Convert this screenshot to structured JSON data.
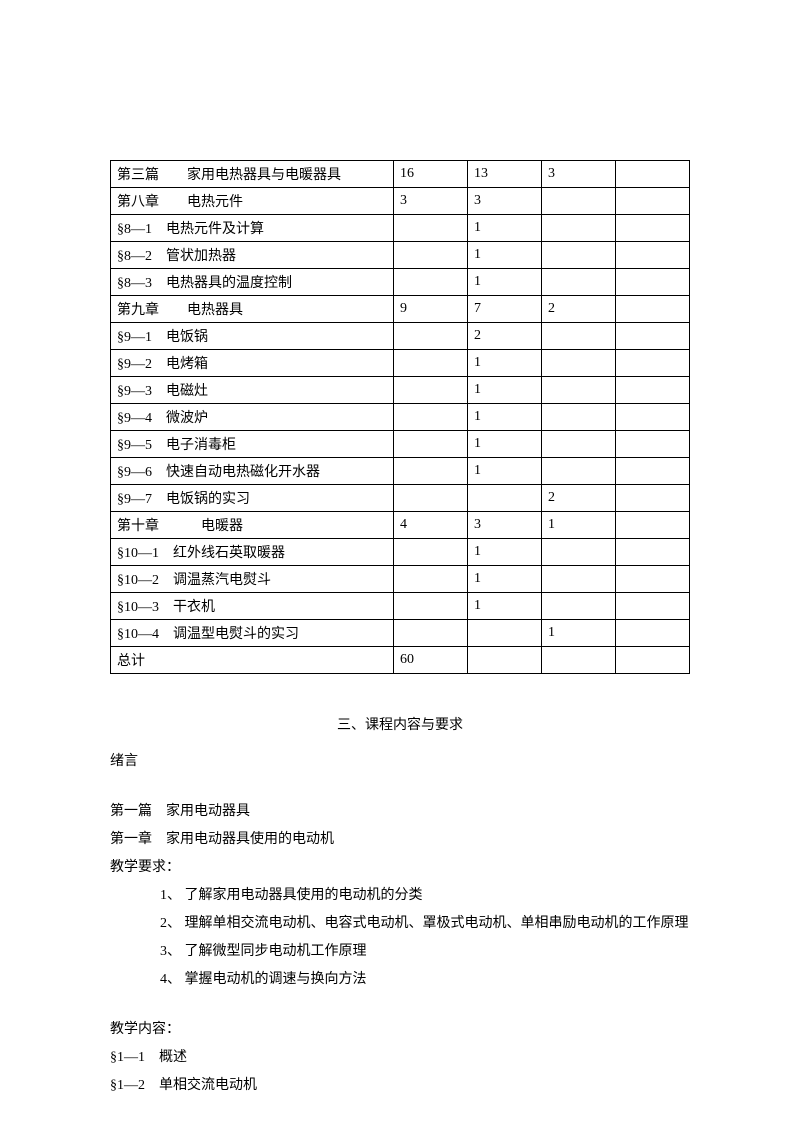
{
  "table": {
    "rows": [
      {
        "label": "第三篇　　家用电热器具与电暖器具",
        "c2": "16",
        "c3": "13",
        "c4": "3",
        "c5": ""
      },
      {
        "label": "第八章　　电热元件",
        "c2": "3",
        "c3": "3",
        "c4": "",
        "c5": ""
      },
      {
        "label": "§8—1　电热元件及计算",
        "c2": "",
        "c3": "1",
        "c4": "",
        "c5": ""
      },
      {
        "label": "§8—2　管状加热器",
        "c2": "",
        "c3": "1",
        "c4": "",
        "c5": ""
      },
      {
        "label": "§8—3　电热器具的温度控制",
        "c2": "",
        "c3": "1",
        "c4": "",
        "c5": ""
      },
      {
        "label": "第九章　　电热器具",
        "c2": "9",
        "c3": "7",
        "c4": "2",
        "c5": ""
      },
      {
        "label": "§9—1　电饭锅",
        "c2": "",
        "c3": "2",
        "c4": "",
        "c5": ""
      },
      {
        "label": "§9—2　电烤箱",
        "c2": "",
        "c3": "1",
        "c4": "",
        "c5": ""
      },
      {
        "label": "§9—3　电磁灶",
        "c2": "",
        "c3": "1",
        "c4": "",
        "c5": ""
      },
      {
        "label": "§9—4　微波炉",
        "c2": "",
        "c3": "1",
        "c4": "",
        "c5": ""
      },
      {
        "label": "§9—5　电子消毒柜",
        "c2": "",
        "c3": "1",
        "c4": "",
        "c5": ""
      },
      {
        "label": "§9—6　快速自动电热磁化开水器",
        "c2": "",
        "c3": "1",
        "c4": "",
        "c5": ""
      },
      {
        "label": "§9—7　电饭锅的实习",
        "c2": "",
        "c3": "",
        "c4": "2",
        "c5": ""
      },
      {
        "label": "第十章　　　电暖器",
        "c2": "4",
        "c3": "3",
        "c4": "1",
        "c5": ""
      },
      {
        "label": "§10—1　红外线石英取暖器",
        "c2": "",
        "c3": "1",
        "c4": "",
        "c5": ""
      },
      {
        "label": "§10—2　调温蒸汽电熨斗",
        "c2": "",
        "c3": "1",
        "c4": "",
        "c5": ""
      },
      {
        "label": "§10—3　干衣机",
        "c2": "",
        "c3": "1",
        "c4": "",
        "c5": ""
      },
      {
        "label": "§10—4　调温型电熨斗的实习",
        "c2": "",
        "c3": "",
        "c4": "1",
        "c5": ""
      },
      {
        "label": "总计",
        "c2": "60",
        "c3": "",
        "c4": "",
        "c5": ""
      }
    ]
  },
  "section": {
    "title": "三、课程内容与要求",
    "preface": "绪言",
    "part": "第一篇　家用电动器具",
    "chapter": "第一章　家用电动器具使用的电动机",
    "req_label": "教学要求：",
    "reqs": [
      "1、 了解家用电动器具使用的电动机的分类",
      "2、 理解单相交流电动机、电容式电动机、罩极式电动机、单相串励电动机的工作原理",
      "3、 了解微型同步电动机工作原理",
      "4、 掌握电动机的调速与换向方法"
    ],
    "content_label": "教学内容：",
    "contents": [
      "§1—1　概述",
      "§1—2　单相交流电动机"
    ]
  }
}
